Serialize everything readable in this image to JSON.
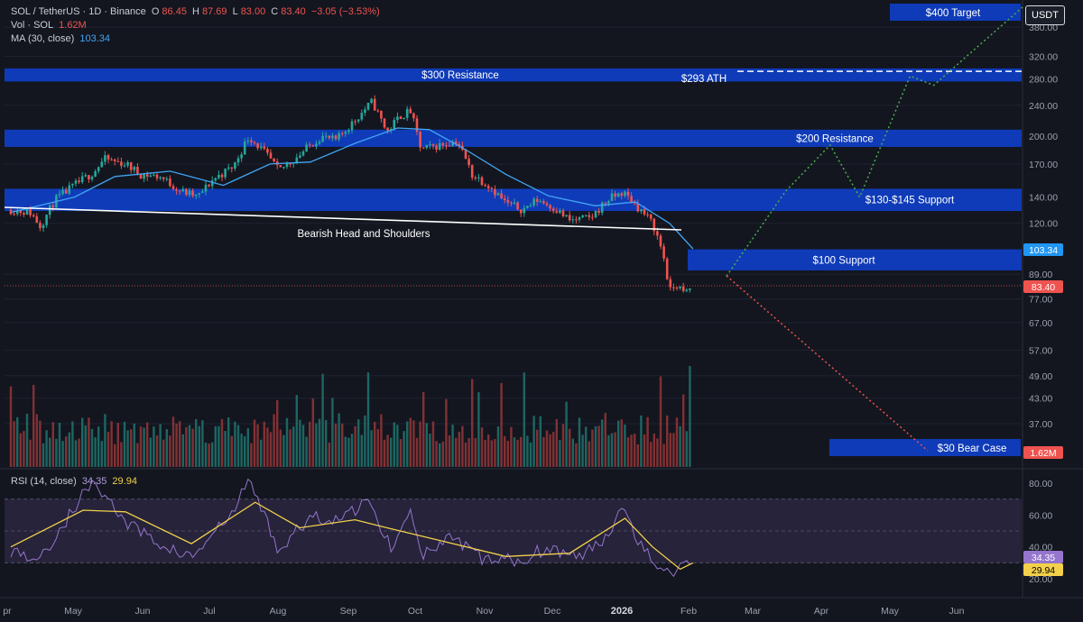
{
  "header": {
    "symbol": "SOL / TetherUS · 1D · Binance",
    "open_label": "O",
    "open": "86.45",
    "high_label": "H",
    "high": "87.69",
    "low_label": "L",
    "low": "83.00",
    "close_label": "C",
    "close": "83.40",
    "change": "−3.05 (−3.53%)",
    "volume_label": "Vol · SOL",
    "volume": "1.62M",
    "ma_label": "MA (30, close)",
    "ma": "103.34",
    "rsi_label": "RSI (14, close)",
    "rsi": "34.35",
    "rsi_ma": "29.94"
  },
  "currency_button": "USDT",
  "colors": {
    "background": "#13161f",
    "zone_blue": "#0f3bb8",
    "candle_up": "#26a69a",
    "candle_down": "#ef5350",
    "ma_line": "#42a5f5",
    "rsi_line": "#9575cd",
    "rsi_ma": "#f2d04a",
    "bull_path": "#4caf50",
    "bear_path": "#ef5350"
  },
  "chart_data": {
    "type": "candlestick",
    "price_axis": {
      "scale": "log",
      "ticks": [
        380.0,
        320.0,
        280.0,
        240.0,
        200.0,
        170.0,
        140.0,
        120.0,
        89.0,
        77.0,
        67.0,
        57.0,
        49.0,
        43.0,
        37.0
      ],
      "tick_labels": [
        "380.00",
        "320.00",
        "280.00",
        "240.00",
        "200.00",
        "170.00",
        "140.00",
        "120.00",
        "89.00",
        "77.00",
        "67.00",
        "57.00",
        "49.00",
        "43.00",
        "37.00"
      ]
    },
    "time_axis": {
      "labels": [
        "pr",
        "May",
        "Jun",
        "Jul",
        "Aug",
        "Sep",
        "Oct",
        "Nov",
        "Dec",
        "2026",
        "Feb",
        "Mar",
        "Apr",
        "May",
        "Jun"
      ],
      "bold_labels": [
        "2026"
      ]
    },
    "price_tags": [
      {
        "value": "103.34",
        "series": "MA (30, close)",
        "color": "#2196f3"
      },
      {
        "value": "83.40",
        "series": "Last price",
        "color": "#ef5350"
      },
      {
        "value": "1.62M",
        "series": "Volume",
        "color": "#ef5350"
      }
    ],
    "zones": [
      {
        "label": "$300 Resistance",
        "from": 276,
        "to": 298
      },
      {
        "label": "$200 Resistance",
        "from": 188,
        "to": 208
      },
      {
        "label": "$130-$145 Support",
        "from": 129,
        "to": 147
      },
      {
        "label": "$100 Support",
        "from": 91,
        "to": 103
      }
    ],
    "callouts": [
      {
        "label": "$400 Target",
        "value": 400
      },
      {
        "label": "$293 ATH",
        "value": 293
      },
      {
        "label": "$30 Bear Case",
        "value": 30
      }
    ],
    "pattern_label": "Bearish Head and Shoulders",
    "scenarios": [
      {
        "name": "bull",
        "points": [
          [
            0,
            88
          ],
          [
            0.2,
            145
          ],
          [
            0.35,
            190
          ],
          [
            0.45,
            140
          ],
          [
            0.62,
            285
          ],
          [
            0.7,
            270
          ],
          [
            1.0,
            400
          ]
        ]
      },
      {
        "name": "bear",
        "points": [
          [
            0,
            88
          ],
          [
            1.0,
            30
          ]
        ]
      }
    ],
    "close_path": [
      [
        "2025-04-01",
        130
      ],
      [
        "2025-04-10",
        128
      ],
      [
        "2025-04-15",
        118
      ],
      [
        "2025-04-22",
        138
      ],
      [
        "2025-05-01",
        150
      ],
      [
        "2025-05-10",
        162
      ],
      [
        "2025-05-15",
        175
      ],
      [
        "2025-05-25",
        170
      ],
      [
        "2025-06-01",
        160
      ],
      [
        "2025-06-10",
        158
      ],
      [
        "2025-06-20",
        145
      ],
      [
        "2025-06-28",
        140
      ],
      [
        "2025-07-05",
        155
      ],
      [
        "2025-07-15",
        168
      ],
      [
        "2025-07-22",
        200
      ],
      [
        "2025-08-01",
        175
      ],
      [
        "2025-08-05",
        163
      ],
      [
        "2025-08-15",
        180
      ],
      [
        "2025-08-25",
        200
      ],
      [
        "2025-09-01",
        195
      ],
      [
        "2025-09-10",
        220
      ],
      [
        "2025-09-18",
        245
      ],
      [
        "2025-09-25",
        205
      ],
      [
        "2025-10-01",
        225
      ],
      [
        "2025-10-06",
        232
      ],
      [
        "2025-10-11",
        185
      ],
      [
        "2025-10-20",
        190
      ],
      [
        "2025-10-28",
        195
      ],
      [
        "2025-11-04",
        160
      ],
      [
        "2025-11-12",
        150
      ],
      [
        "2025-11-20",
        135
      ],
      [
        "2025-11-28",
        130
      ],
      [
        "2025-12-05",
        138
      ],
      [
        "2025-12-12",
        132
      ],
      [
        "2025-12-20",
        122
      ],
      [
        "2025-12-30",
        124
      ],
      [
        "2026-01-07",
        138
      ],
      [
        "2026-01-14",
        144
      ],
      [
        "2026-01-21",
        132
      ],
      [
        "2026-01-28",
        120
      ],
      [
        "2026-02-02",
        100
      ],
      [
        "2026-02-05",
        80
      ],
      [
        "2026-02-08",
        84
      ],
      [
        "2026-02-12",
        79
      ],
      [
        "2026-02-16",
        83.4
      ]
    ],
    "ma_path": [
      [
        "2025-04-01",
        128
      ],
      [
        "2025-05-01",
        140
      ],
      [
        "2025-05-20",
        158
      ],
      [
        "2025-06-15",
        163
      ],
      [
        "2025-07-10",
        150
      ],
      [
        "2025-08-01",
        170
      ],
      [
        "2025-08-20",
        172
      ],
      [
        "2025-09-10",
        192
      ],
      [
        "2025-09-30",
        210
      ],
      [
        "2025-10-15",
        208
      ],
      [
        "2025-11-01",
        185
      ],
      [
        "2025-11-20",
        160
      ],
      [
        "2025-12-10",
        141
      ],
      [
        "2026-01-01",
        133
      ],
      [
        "2026-01-20",
        136
      ],
      [
        "2026-02-05",
        120
      ],
      [
        "2026-02-16",
        103.34
      ]
    ],
    "rsi_axis": {
      "ticks": [
        80.0,
        60.0,
        40.0,
        20.0
      ],
      "tick_labels": [
        "80.00",
        "60.00",
        "40.00",
        "20.00"
      ],
      "band": [
        30,
        70
      ]
    },
    "rsi_path": [
      [
        "2025-04-01",
        38
      ],
      [
        "2025-04-15",
        32
      ],
      [
        "2025-05-01",
        65
      ],
      [
        "2025-05-10",
        82
      ],
      [
        "2025-05-25",
        55
      ],
      [
        "2025-06-10",
        42
      ],
      [
        "2025-06-25",
        33
      ],
      [
        "2025-07-15",
        62
      ],
      [
        "2025-07-22",
        83
      ],
      [
        "2025-08-05",
        38
      ],
      [
        "2025-08-20",
        58
      ],
      [
        "2025-09-05",
        58
      ],
      [
        "2025-09-15",
        70
      ],
      [
        "2025-09-28",
        38
      ],
      [
        "2025-10-06",
        68
      ],
      [
        "2025-10-11",
        34
      ],
      [
        "2025-10-25",
        45
      ],
      [
        "2025-11-10",
        32
      ],
      [
        "2025-11-25",
        31
      ],
      [
        "2025-12-10",
        40
      ],
      [
        "2025-12-25",
        33
      ],
      [
        "2026-01-07",
        48
      ],
      [
        "2026-01-14",
        68
      ],
      [
        "2026-01-22",
        42
      ],
      [
        "2026-02-05",
        21
      ],
      [
        "2026-02-10",
        28
      ],
      [
        "2026-02-16",
        34.35
      ]
    ],
    "rsi_ma_path": [
      [
        "2025-04-01",
        40
      ],
      [
        "2025-05-05",
        63
      ],
      [
        "2025-05-25",
        62
      ],
      [
        "2025-06-25",
        42
      ],
      [
        "2025-07-25",
        68
      ],
      [
        "2025-08-15",
        52
      ],
      [
        "2025-09-10",
        57
      ],
      [
        "2025-09-25",
        52
      ],
      [
        "2025-10-20",
        44
      ],
      [
        "2025-11-20",
        34
      ],
      [
        "2025-12-20",
        36
      ],
      [
        "2026-01-15",
        58
      ],
      [
        "2026-01-28",
        40
      ],
      [
        "2026-02-10",
        26
      ],
      [
        "2026-02-16",
        29.94
      ]
    ]
  }
}
